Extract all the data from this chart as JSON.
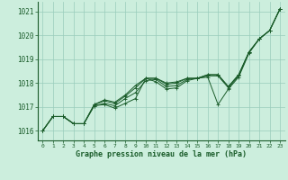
{
  "background_color": "#cceedd",
  "grid_color": "#99ccbb",
  "line_color": "#1a5c2a",
  "ylim": [
    1015.6,
    1021.4
  ],
  "xlim": [
    -0.5,
    23.5
  ],
  "yticks": [
    1016,
    1017,
    1018,
    1019,
    1020,
    1021
  ],
  "xticks": [
    0,
    1,
    2,
    3,
    4,
    5,
    6,
    7,
    8,
    9,
    10,
    11,
    12,
    13,
    14,
    15,
    16,
    17,
    18,
    19,
    20,
    21,
    22,
    23
  ],
  "xlabel": "Graphe pression niveau de la mer (hPa)",
  "series": [
    [
      1016.0,
      1016.6,
      1016.6,
      1016.3,
      1016.3,
      1017.05,
      1017.1,
      1016.95,
      1017.15,
      1017.35,
      1018.2,
      1018.05,
      1017.75,
      1017.8,
      1018.1,
      1018.2,
      1018.25,
      1017.1,
      1017.75,
      1018.25,
      1019.25,
      1019.85,
      1020.2,
      1021.1
    ],
    [
      1016.0,
      1016.6,
      1016.6,
      1016.3,
      1016.3,
      1017.05,
      1017.15,
      1017.05,
      1017.35,
      1017.6,
      1018.1,
      1018.15,
      1017.85,
      1017.9,
      1018.15,
      1018.2,
      1018.3,
      1018.3,
      1017.8,
      1018.3,
      1019.3,
      1019.85,
      1020.2,
      1021.1
    ],
    [
      1016.0,
      1016.6,
      1016.6,
      1016.3,
      1016.3,
      1017.1,
      1017.25,
      1017.15,
      1017.45,
      1017.8,
      1018.2,
      1018.2,
      1017.95,
      1018.0,
      1018.2,
      1018.2,
      1018.35,
      1018.35,
      1017.85,
      1018.35,
      1019.3,
      1019.85,
      1020.2,
      1021.1
    ],
    [
      1016.0,
      1016.6,
      1016.6,
      1016.3,
      1016.3,
      1017.1,
      1017.3,
      1017.2,
      1017.5,
      1017.9,
      1018.2,
      1018.2,
      1018.0,
      1018.05,
      1018.2,
      1018.2,
      1018.35,
      1018.35,
      1017.85,
      1018.35,
      1019.3,
      1019.85,
      1020.2,
      1021.1
    ]
  ]
}
